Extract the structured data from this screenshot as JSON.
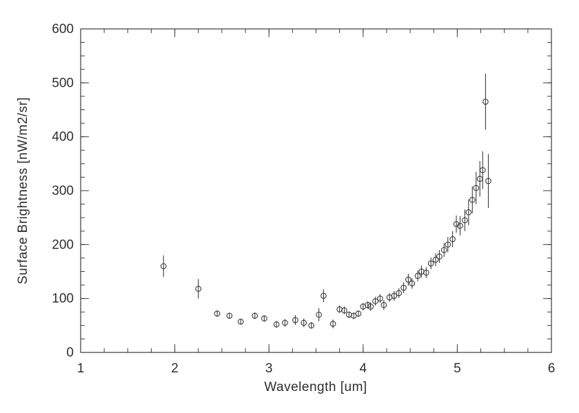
{
  "figure": {
    "xlabel": "Wavelength [um]",
    "ylabel": "Surface Brightness [nW/m2/sr]"
  },
  "chart_data": {
    "type": "scatter",
    "title": "",
    "xlabel": "Wavelength [um]",
    "ylabel": "Surface Brightness [nW/m2/sr]",
    "xlim": [
      1,
      6
    ],
    "ylim": [
      0,
      600
    ],
    "x_ticks": [
      1,
      2,
      3,
      4,
      5,
      6
    ],
    "y_ticks": [
      0,
      100,
      200,
      300,
      400,
      500,
      600
    ],
    "x_minor_step": 0.25,
    "y_minor_step": 25,
    "grid": false,
    "legend": "none",
    "marker": "open-circle",
    "error_bars": true,
    "color": "#3a3a3a",
    "points_format": "[wavelength_um, surface_brightness_nW_m2_sr, error]",
    "points": [
      [
        1.88,
        160,
        20
      ],
      [
        2.25,
        118,
        18
      ],
      [
        2.45,
        72,
        6
      ],
      [
        2.58,
        68,
        5
      ],
      [
        2.7,
        57,
        5
      ],
      [
        2.85,
        68,
        6
      ],
      [
        2.95,
        63,
        6
      ],
      [
        3.08,
        52,
        6
      ],
      [
        3.17,
        55,
        7
      ],
      [
        3.28,
        60,
        9
      ],
      [
        3.37,
        55,
        8
      ],
      [
        3.45,
        50,
        6
      ],
      [
        3.53,
        70,
        12
      ],
      [
        3.58,
        105,
        12
      ],
      [
        3.68,
        53,
        8
      ],
      [
        3.75,
        80,
        7
      ],
      [
        3.8,
        78,
        7
      ],
      [
        3.85,
        70,
        6
      ],
      [
        3.9,
        68,
        6
      ],
      [
        3.95,
        72,
        6
      ],
      [
        4.0,
        85,
        7
      ],
      [
        4.05,
        88,
        7
      ],
      [
        4.08,
        85,
        8
      ],
      [
        4.13,
        95,
        8
      ],
      [
        4.18,
        100,
        8
      ],
      [
        4.22,
        88,
        9
      ],
      [
        4.28,
        102,
        8
      ],
      [
        4.33,
        105,
        9
      ],
      [
        4.38,
        110,
        9
      ],
      [
        4.43,
        120,
        10
      ],
      [
        4.48,
        135,
        11
      ],
      [
        4.52,
        128,
        10
      ],
      [
        4.58,
        142,
        10
      ],
      [
        4.62,
        150,
        11
      ],
      [
        4.67,
        148,
        10
      ],
      [
        4.72,
        165,
        11
      ],
      [
        4.77,
        172,
        12
      ],
      [
        4.81,
        178,
        12
      ],
      [
        4.86,
        190,
        13
      ],
      [
        4.9,
        200,
        14
      ],
      [
        4.95,
        210,
        15
      ],
      [
        4.99,
        238,
        16
      ],
      [
        5.03,
        235,
        18
      ],
      [
        5.08,
        245,
        20
      ],
      [
        5.12,
        260,
        24
      ],
      [
        5.16,
        283,
        25
      ],
      [
        5.2,
        305,
        30
      ],
      [
        5.24,
        322,
        33
      ],
      [
        5.27,
        338,
        35
      ],
      [
        5.3,
        465,
        52
      ],
      [
        5.33,
        318,
        50
      ]
    ]
  }
}
